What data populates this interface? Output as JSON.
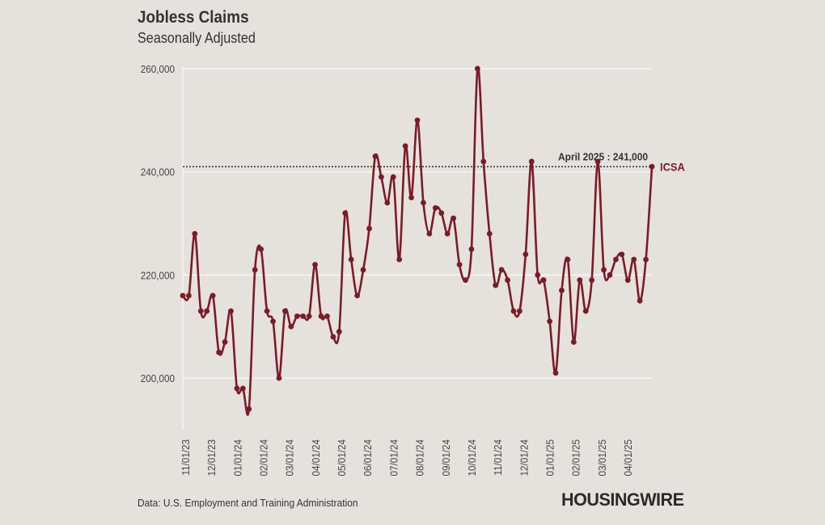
{
  "chart_data": {
    "type": "line",
    "title": "Jobless Claims",
    "subtitle": "Seasonally Adjusted",
    "series": [
      {
        "name": "ICSA",
        "color": "#7d1a26",
        "values": [
          216000,
          216000,
          228000,
          213000,
          213000,
          216000,
          205000,
          207000,
          213000,
          198000,
          198000,
          194000,
          221000,
          225000,
          213000,
          211000,
          200000,
          213000,
          210000,
          212000,
          212000,
          212000,
          222000,
          212000,
          212000,
          208000,
          209000,
          232000,
          223000,
          216000,
          221000,
          229000,
          243000,
          239000,
          234000,
          239000,
          223000,
          245000,
          235000,
          250000,
          234000,
          228000,
          233000,
          232000,
          228000,
          231000,
          222000,
          219000,
          225000,
          260000,
          242000,
          228000,
          218000,
          221000,
          219000,
          213000,
          213000,
          224000,
          242000,
          220000,
          219000,
          211000,
          201000,
          217000,
          223000,
          207000,
          219000,
          213000,
          219000,
          242000,
          221000,
          220000,
          223000,
          224000,
          219000,
          223000,
          215000,
          223000,
          241000
        ]
      }
    ],
    "x_tick_labels": [
      "11/01/23",
      "12/01/23",
      "01/01/24",
      "02/01/24",
      "03/01/24",
      "04/01/24",
      "05/01/24",
      "06/01/24",
      "07/01/24",
      "08/01/24",
      "09/01/24",
      "10/01/24",
      "11/01/24",
      "12/01/24",
      "01/01/25",
      "02/01/25",
      "03/01/25",
      "04/01/25"
    ],
    "y_ticks": [
      200000,
      220000,
      240000,
      260000
    ],
    "y_tick_labels": [
      "200,000",
      "220,000",
      "240,000",
      "260,000"
    ],
    "ylim": [
      190000,
      260000
    ],
    "reference_line": {
      "value": 241000,
      "label": "April 2025 : 241,000",
      "style": "dotted"
    },
    "series_label": "ICSA",
    "grid": true
  },
  "footer": {
    "source": "Data: U.S. Employment and Training Administration",
    "logo": "HOUSINGWIRE"
  },
  "colors": {
    "background": "#e5e2de",
    "line": "#7d1a26",
    "grid": "#ffffff",
    "text": "#333333"
  }
}
